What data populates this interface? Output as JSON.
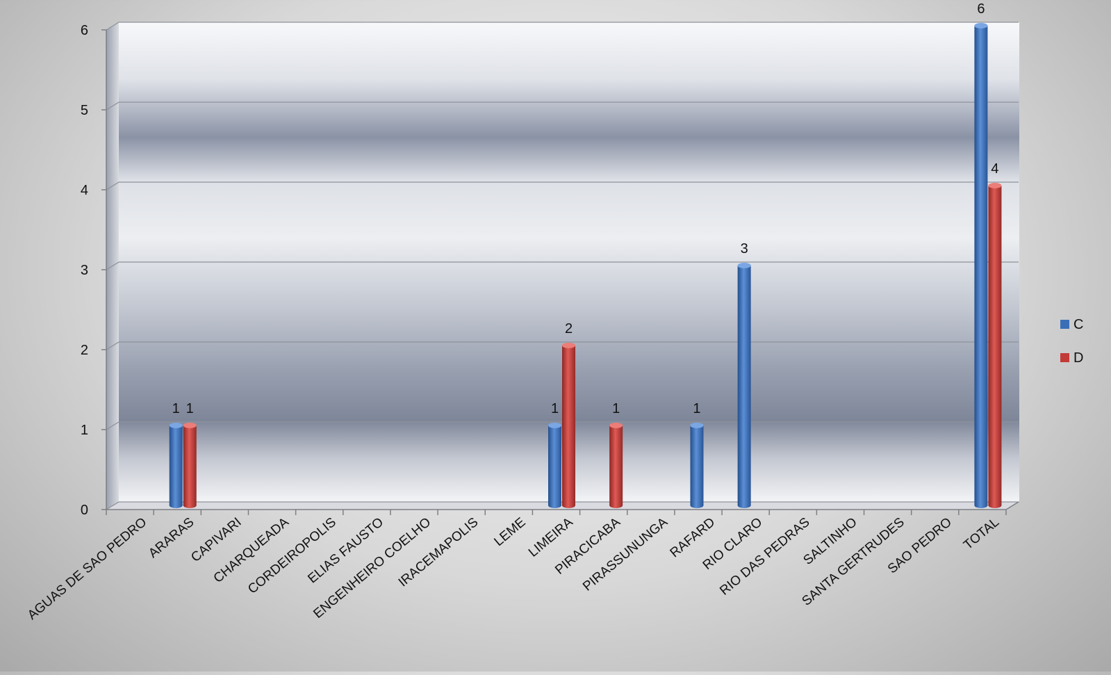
{
  "chart_data": {
    "type": "bar",
    "categories": [
      "AGUAS DE SAO PEDRO",
      "ARARAS",
      "CAPIVARI",
      "CHARQUEADA",
      "CORDEIROPOLIS",
      "ELIAS FAUSTO",
      "ENGENHEIRO COELHO",
      "IRACEMAPOLIS",
      "LEME",
      "LIMEIRA",
      "PIRACICABA",
      "PIRASSUNUNGA",
      "RAFARD",
      "RIO CLARO",
      "RIO DAS PEDRAS",
      "SALTINHO",
      "SANTA GERTRUDES",
      "SAO PEDRO",
      "TOTAL"
    ],
    "series": [
      {
        "name": "C",
        "color": "#3a6fb7",
        "values": [
          0,
          1,
          0,
          0,
          0,
          0,
          0,
          0,
          0,
          1,
          0,
          0,
          1,
          3,
          0,
          0,
          0,
          0,
          6
        ]
      },
      {
        "name": "D",
        "color": "#c23b37",
        "values": [
          0,
          1,
          0,
          0,
          0,
          0,
          0,
          0,
          0,
          2,
          1,
          0,
          0,
          0,
          0,
          0,
          0,
          0,
          4
        ]
      }
    ],
    "ylim": [
      0,
      6
    ],
    "yticks": [
      "0",
      "1",
      "2",
      "3",
      "4",
      "5",
      "6"
    ],
    "grid": true,
    "legend": "right",
    "title": "",
    "xlabel": "",
    "ylabel": ""
  }
}
